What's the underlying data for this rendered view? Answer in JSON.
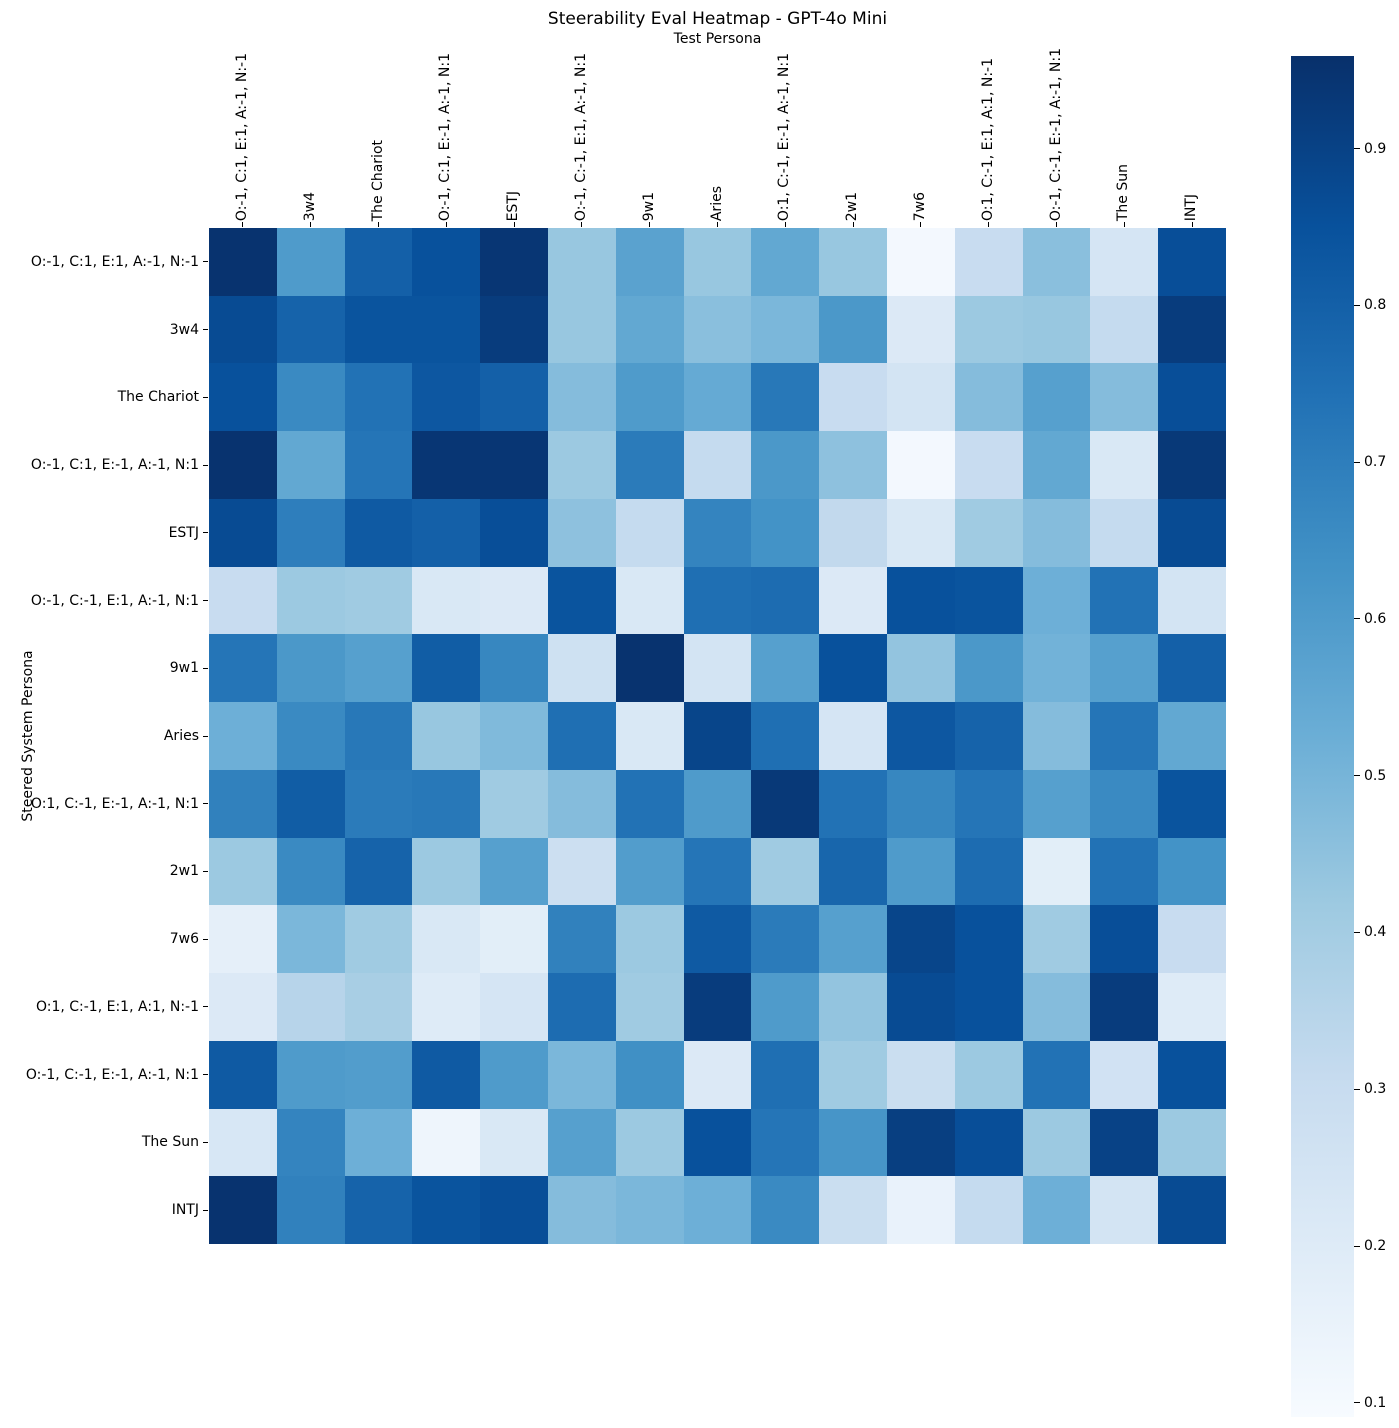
{
  "chart_data": {
    "type": "heatmap",
    "title": "Steerability Eval Heatmap - GPT-4o Mini",
    "xlabel": "Test Persona",
    "ylabel": "Steered System Persona",
    "columns": [
      "O:-1, C:1, E:1, A:-1, N:-1",
      "3w4",
      "The Chariot",
      "O:-1, C:1, E:-1, A:-1, N:1",
      "ESTJ",
      "O:-1, C:-1, E:1, A:-1, N:1",
      "9w1",
      "Aries",
      "O:1, C:-1, E:-1, A:-1, N:1",
      "2w1",
      "7w6",
      "O:1, C:-1, E:1, A:1, N:-1",
      "O:-1, C:-1, E:-1, A:-1, N:1",
      "The Sun",
      "INTJ"
    ],
    "rows": [
      "O:-1, C:1, E:1, A:-1, N:-1",
      "3w4",
      "The Chariot",
      "O:-1, C:1, E:-1, A:-1, N:1",
      "ESTJ",
      "O:-1, C:-1, E:1, A:-1, N:1",
      "9w1",
      "Aries",
      "O:1, C:-1, E:-1, A:-1, N:1",
      "2w1",
      "7w6",
      "O:1, C:-1, E:1, A:1, N:-1",
      "O:-1, C:-1, E:-1, A:-1, N:1",
      "The Sun",
      "INTJ"
    ],
    "values": [
      [
        0.95,
        0.6,
        0.8,
        0.85,
        0.94,
        0.43,
        0.57,
        0.43,
        0.55,
        0.43,
        0.11,
        0.3,
        0.46,
        0.24,
        0.86
      ],
      [
        0.87,
        0.79,
        0.84,
        0.84,
        0.92,
        0.43,
        0.55,
        0.46,
        0.49,
        0.61,
        0.21,
        0.42,
        0.43,
        0.31,
        0.92
      ],
      [
        0.85,
        0.66,
        0.74,
        0.83,
        0.8,
        0.47,
        0.6,
        0.54,
        0.72,
        0.3,
        0.25,
        0.47,
        0.58,
        0.47,
        0.86
      ],
      [
        0.95,
        0.55,
        0.73,
        0.94,
        0.94,
        0.42,
        0.71,
        0.31,
        0.61,
        0.45,
        0.11,
        0.3,
        0.55,
        0.22,
        0.93
      ],
      [
        0.87,
        0.7,
        0.82,
        0.8,
        0.86,
        0.45,
        0.31,
        0.68,
        0.63,
        0.32,
        0.22,
        0.41,
        0.47,
        0.31,
        0.87
      ],
      [
        0.3,
        0.42,
        0.41,
        0.22,
        0.21,
        0.84,
        0.22,
        0.75,
        0.76,
        0.21,
        0.85,
        0.84,
        0.52,
        0.74,
        0.25
      ],
      [
        0.73,
        0.61,
        0.58,
        0.81,
        0.67,
        0.27,
        0.95,
        0.25,
        0.58,
        0.85,
        0.44,
        0.61,
        0.51,
        0.58,
        0.8
      ],
      [
        0.52,
        0.66,
        0.72,
        0.43,
        0.48,
        0.75,
        0.22,
        0.89,
        0.75,
        0.24,
        0.83,
        0.79,
        0.47,
        0.73,
        0.55
      ],
      [
        0.69,
        0.81,
        0.71,
        0.72,
        0.41,
        0.47,
        0.74,
        0.6,
        0.93,
        0.74,
        0.67,
        0.73,
        0.58,
        0.66,
        0.84
      ],
      [
        0.42,
        0.66,
        0.79,
        0.42,
        0.58,
        0.28,
        0.59,
        0.73,
        0.41,
        0.78,
        0.6,
        0.76,
        0.18,
        0.74,
        0.63
      ],
      [
        0.17,
        0.49,
        0.41,
        0.22,
        0.18,
        0.69,
        0.42,
        0.82,
        0.71,
        0.58,
        0.89,
        0.85,
        0.41,
        0.86,
        0.3
      ],
      [
        0.21,
        0.35,
        0.39,
        0.2,
        0.24,
        0.76,
        0.41,
        0.92,
        0.6,
        0.44,
        0.87,
        0.85,
        0.47,
        0.92,
        0.2
      ],
      [
        0.82,
        0.6,
        0.59,
        0.82,
        0.6,
        0.49,
        0.64,
        0.21,
        0.75,
        0.41,
        0.29,
        0.42,
        0.74,
        0.26,
        0.85
      ],
      [
        0.23,
        0.68,
        0.52,
        0.13,
        0.22,
        0.58,
        0.42,
        0.85,
        0.73,
        0.62,
        0.91,
        0.86,
        0.42,
        0.9,
        0.42
      ],
      [
        0.95,
        0.69,
        0.79,
        0.84,
        0.86,
        0.47,
        0.49,
        0.52,
        0.66,
        0.29,
        0.15,
        0.31,
        0.52,
        0.25,
        0.87
      ]
    ],
    "colormap": "Blues",
    "colormap_stops": [
      "#f7fbff",
      "#deebf7",
      "#c6dbef",
      "#9ecae1",
      "#6baed6",
      "#4292c6",
      "#2171b5",
      "#08519c",
      "#08306b"
    ],
    "vmin": 0.091,
    "vmax": 0.959,
    "colorbar_ticks": [
      0.9,
      0.8,
      0.7,
      0.6,
      0.5,
      0.4,
      0.3,
      0.2,
      0.1
    ],
    "legend_position": "right",
    "grid": false
  }
}
